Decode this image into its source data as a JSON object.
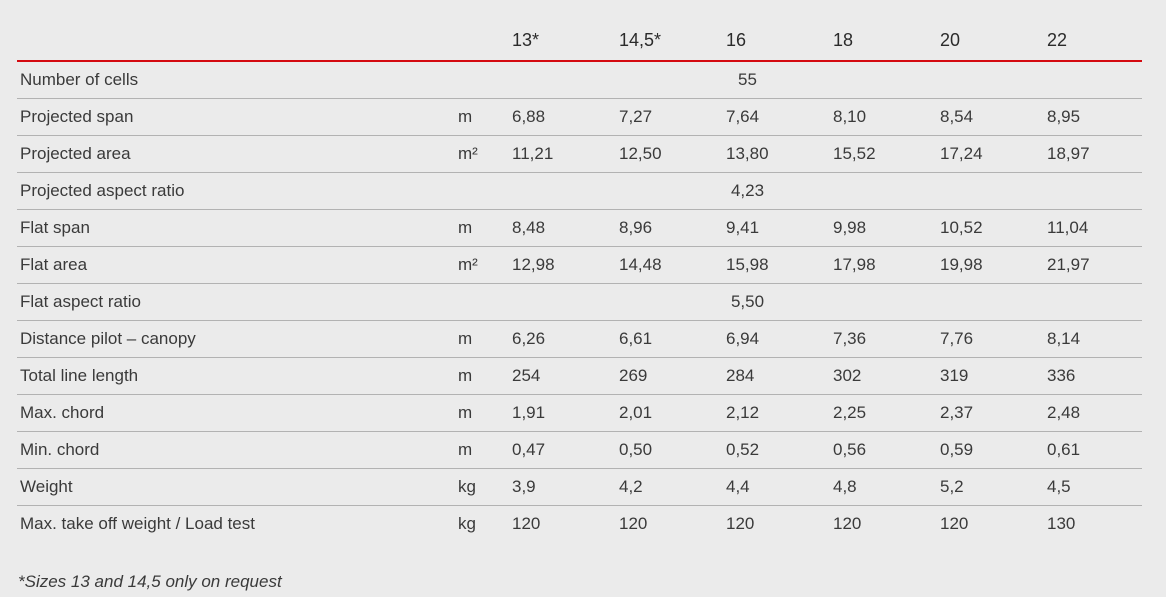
{
  "table": {
    "size_headers": [
      "13*",
      "14,5*",
      "16",
      "18",
      "20",
      "22"
    ],
    "rows": [
      {
        "label": "Number of cells",
        "unit": "",
        "merged": "55"
      },
      {
        "label": "Projected span",
        "unit": "m",
        "values": [
          "6,88",
          "7,27",
          "7,64",
          "8,10",
          "8,54",
          "8,95"
        ]
      },
      {
        "label": "Projected area",
        "unit": "m²",
        "values": [
          "11,21",
          "12,50",
          "13,80",
          "15,52",
          "17,24",
          "18,97"
        ]
      },
      {
        "label": "Projected aspect ratio",
        "unit": "",
        "merged": "4,23"
      },
      {
        "label": "Flat span",
        "unit": "m",
        "values": [
          "8,48",
          "8,96",
          "9,41",
          "9,98",
          "10,52",
          "11,04"
        ]
      },
      {
        "label": "Flat area",
        "unit": "m²",
        "values": [
          "12,98",
          "14,48",
          "15,98",
          "17,98",
          "19,98",
          "21,97"
        ]
      },
      {
        "label": "Flat aspect ratio",
        "unit": "",
        "merged": "5,50"
      },
      {
        "label": "Distance pilot – canopy",
        "unit": "m",
        "values": [
          "6,26",
          "6,61",
          "6,94",
          "7,36",
          "7,76",
          "8,14"
        ]
      },
      {
        "label": "Total line length",
        "unit": "m",
        "values": [
          "254",
          "269",
          "284",
          "302",
          "319",
          "336"
        ]
      },
      {
        "label": "Max. chord",
        "unit": "m",
        "values": [
          "1,91",
          "2,01",
          "2,12",
          "2,25",
          "2,37",
          "2,48"
        ]
      },
      {
        "label": "Min. chord",
        "unit": "m",
        "values": [
          "0,47",
          "0,50",
          "0,52",
          "0,56",
          "0,59",
          "0,61"
        ]
      },
      {
        "label": "Weight",
        "unit": "kg",
        "values": [
          "3,9",
          "4,2",
          "4,4",
          "4,8",
          "5,2",
          "4,5"
        ]
      },
      {
        "label": "Max. take off weight / Load test",
        "unit": "kg",
        "values": [
          "120",
          "120",
          "120",
          "120",
          "120",
          "130"
        ]
      }
    ],
    "footnote": "*Sizes 13 and 14,5 only on request"
  },
  "colors": {
    "background": "#ebebeb",
    "accent_red": "#d40a10",
    "row_line": "#b2b2b2",
    "text": "#3a3a3a"
  }
}
